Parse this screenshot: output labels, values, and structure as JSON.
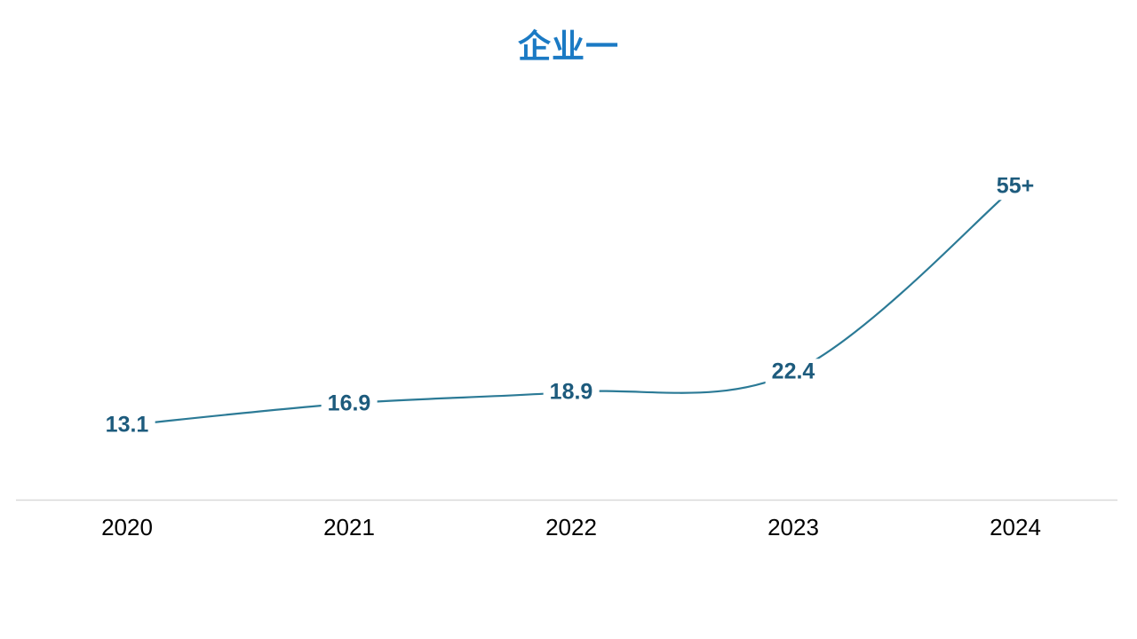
{
  "title": "企业一",
  "chart_data": {
    "type": "line",
    "title": "企业一",
    "categories": [
      "2020",
      "2021",
      "2022",
      "2023",
      "2024"
    ],
    "values": [
      13.1,
      16.9,
      18.9,
      22.4,
      55
    ],
    "point_labels": [
      "13.1",
      "16.9",
      "18.9",
      "22.4",
      "55+"
    ],
    "xlabel": "",
    "ylabel": "",
    "ylim": [
      0,
      60
    ],
    "grid": false,
    "legend": false,
    "y_axis_visible": false,
    "x_axis_line_visible": true,
    "smoothed_line": true,
    "line_color": "#2b7a96",
    "label_color": "#1d5b7d",
    "title_color": "#1b7ac4",
    "axis_line_color": "#d9d9d9",
    "tick_color": "#000000",
    "background_color": "#ffffff"
  }
}
